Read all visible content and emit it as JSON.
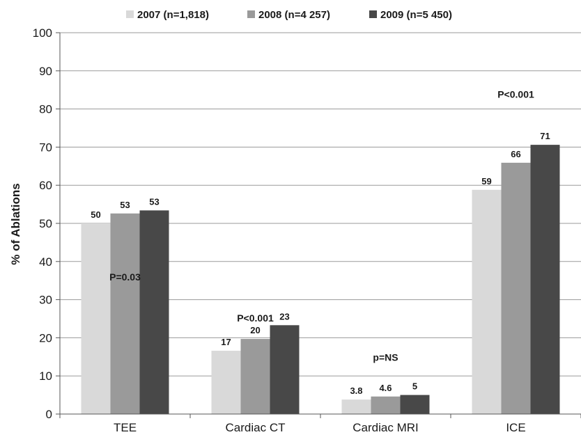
{
  "chart_data": {
    "type": "bar",
    "ylabel": "% of Ablations",
    "xlabel": "",
    "ylim": [
      0,
      100
    ],
    "yticks": [
      0,
      10,
      20,
      30,
      40,
      50,
      60,
      70,
      80,
      90,
      100
    ],
    "grid": true,
    "legend_position": "top",
    "categories": [
      "TEE",
      "Cardiac CT",
      "Cardiac MRI",
      "ICE"
    ],
    "series": [
      {
        "name": "2007 (n=1,818)",
        "color": "#d9d9d9",
        "values": [
          50,
          16.6,
          3.8,
          58.8
        ],
        "labels": [
          "50",
          "17",
          "3.8",
          "59"
        ]
      },
      {
        "name": "2008 (n=4 257)",
        "color": "#9a9a9a",
        "values": [
          52.6,
          19.7,
          4.6,
          65.9
        ],
        "labels": [
          "53",
          "20",
          "4.6",
          "66"
        ]
      },
      {
        "name": "2009 (n=5 450)",
        "color": "#484848",
        "values": [
          53.4,
          23.3,
          5,
          70.6
        ],
        "labels": [
          "53",
          "23",
          "5",
          "71"
        ]
      }
    ],
    "annotations": [
      "P=0.03",
      "P<0.001",
      "p=NS",
      "P<0.001"
    ]
  }
}
